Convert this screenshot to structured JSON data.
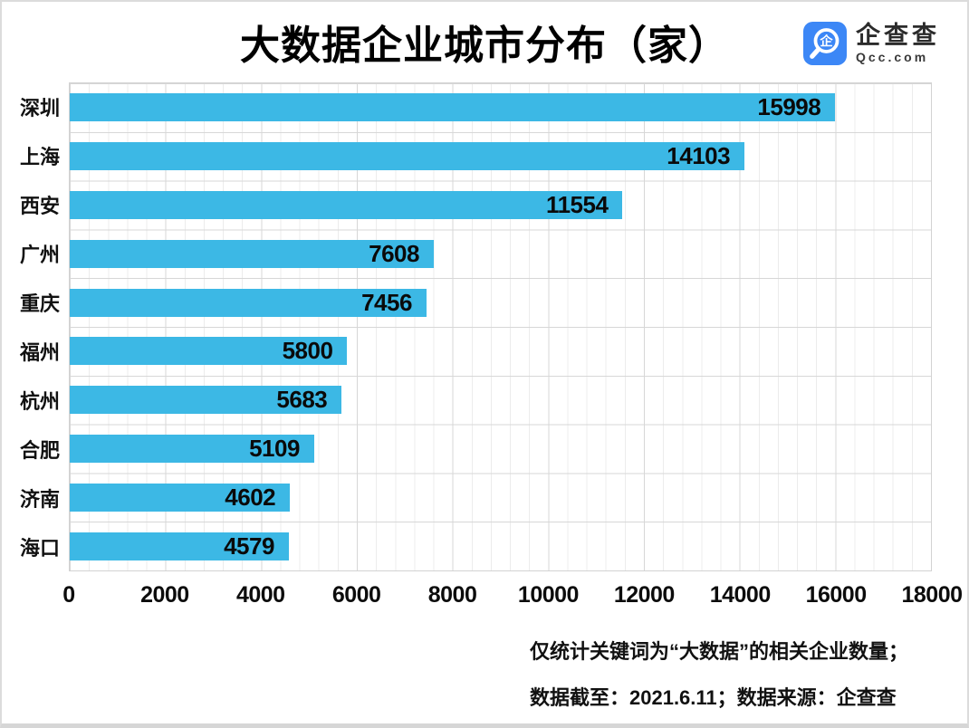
{
  "title": "大数据企业城市分布（家）",
  "logo": {
    "icon": "qcc-magnifier-icon",
    "icon_glyph": "企",
    "icon_color": "#3c87f6",
    "name": "企查查",
    "domain": "Qcc.com"
  },
  "chart_data": {
    "type": "bar",
    "orientation": "horizontal",
    "title": "大数据企业城市分布（家）",
    "categories": [
      "深圳",
      "上海",
      "西安",
      "广州",
      "重庆",
      "福州",
      "杭州",
      "合肥",
      "济南",
      "海口"
    ],
    "values": [
      15998,
      14103,
      11554,
      7608,
      7456,
      5800,
      5683,
      5109,
      4602,
      4579
    ],
    "xlabel": "",
    "ylabel": "",
    "xlim": [
      0,
      18000
    ],
    "x_ticks": [
      0,
      2000,
      4000,
      6000,
      8000,
      10000,
      12000,
      14000,
      16000,
      18000
    ],
    "grid": "major-and-minor-vertical, horizontal band lines",
    "minor_tick_step": 400,
    "bar_color": "#3cb8e5",
    "value_label_position": "inside-end",
    "legend": "none"
  },
  "footnote": {
    "line1": "仅统计关键词为“大数据”的相关企业数量；",
    "line2": "数据截至：2021.6.11；数据来源：企查查"
  }
}
